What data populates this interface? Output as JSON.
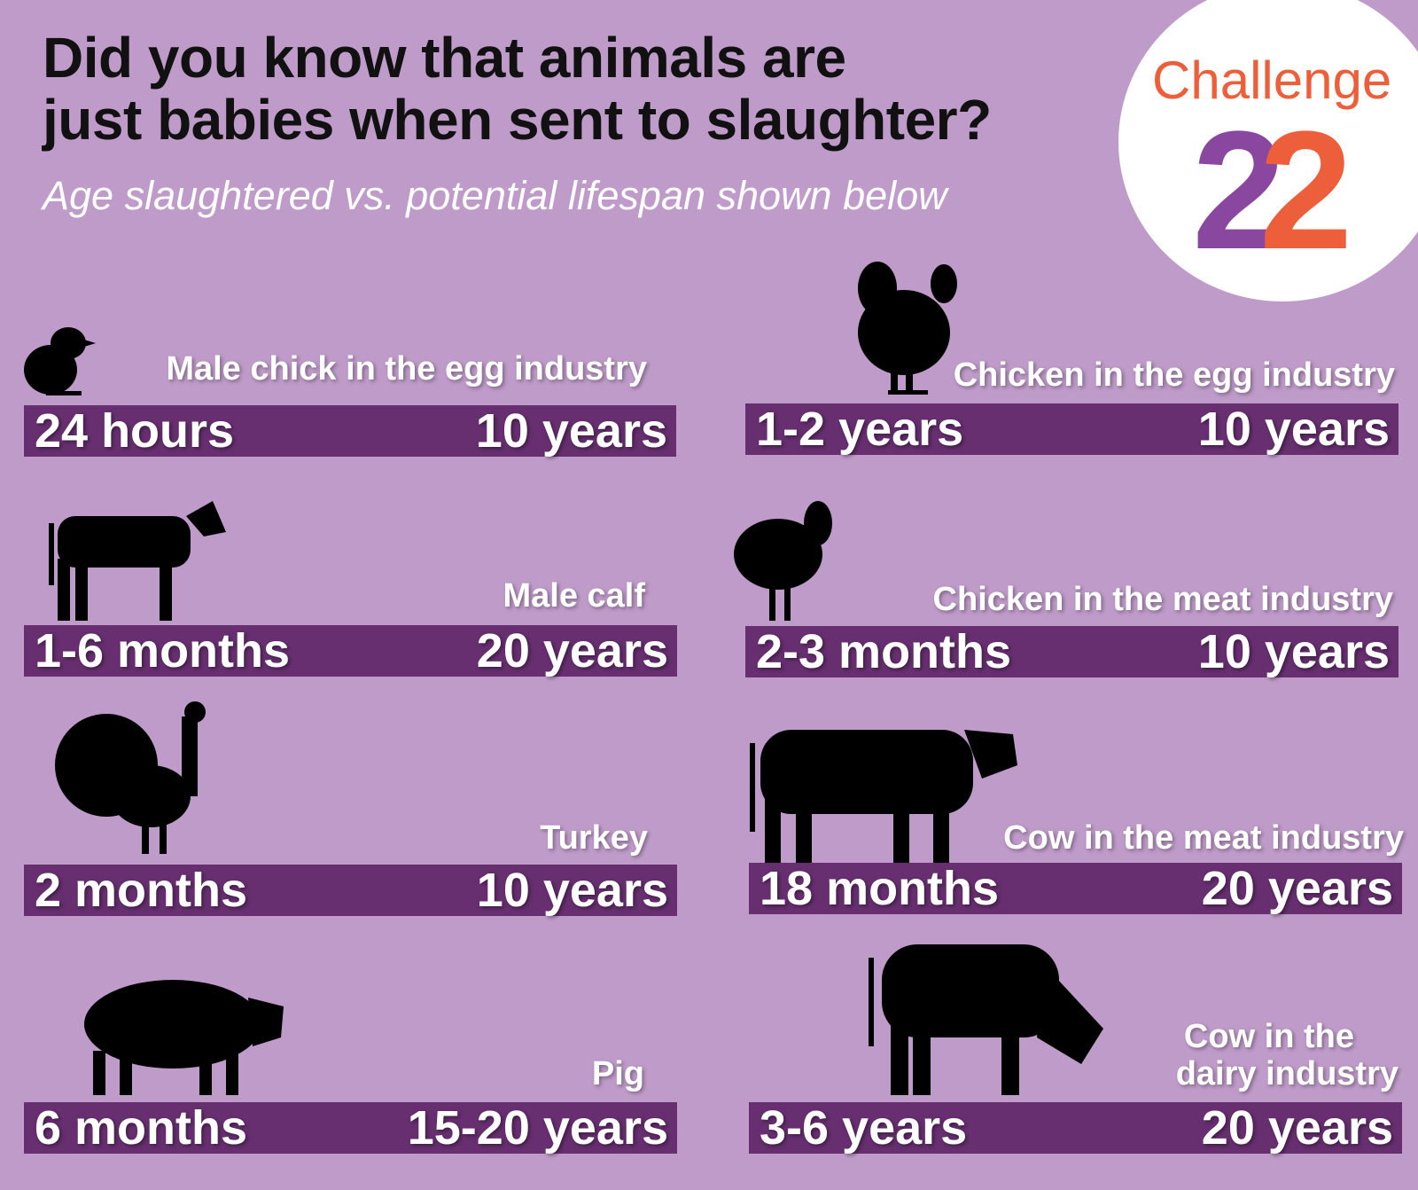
{
  "header": {
    "title_line1": "Did you know that animals are",
    "title_line2": "just babies when sent to slaughter?",
    "subtitle": "Age slaughtered vs. potential lifespan shown below"
  },
  "logo": {
    "word": "Challenge",
    "number_part1": "2",
    "number_part2": "2",
    "colors": {
      "orange": "#ec5f3a",
      "purple": "#8a47a0"
    }
  },
  "colors": {
    "background": "#bf9bc9",
    "bar": "#672f70"
  },
  "animals": [
    {
      "label": "Male chick in the egg industry",
      "slaughtered": "24 hours",
      "lifespan": "10 years",
      "icon": "chick-icon"
    },
    {
      "label": "Chicken in the egg industry",
      "slaughtered": "1-2 years",
      "lifespan": "10 years",
      "icon": "hen-icon"
    },
    {
      "label": "Male calf",
      "slaughtered": "1-6 months",
      "lifespan": "20 years",
      "icon": "calf-icon"
    },
    {
      "label": "Chicken in the meat industry",
      "slaughtered": "2-3 months",
      "lifespan": "10 years",
      "icon": "chicken-icon"
    },
    {
      "label": "Turkey",
      "slaughtered": "2 months",
      "lifespan": "10 years",
      "icon": "turkey-icon"
    },
    {
      "label": "Cow in the meat industry",
      "slaughtered": "18 months",
      "lifespan": "20 years",
      "icon": "cow-icon"
    },
    {
      "label": "Pig",
      "slaughtered": "6 months",
      "lifespan": "15-20 years",
      "icon": "pig-icon"
    },
    {
      "label_line1": "Cow in the",
      "label_line2": "dairy industry",
      "slaughtered": "3-6 years",
      "lifespan": "20 years",
      "icon": "dairy-cow-icon"
    }
  ]
}
